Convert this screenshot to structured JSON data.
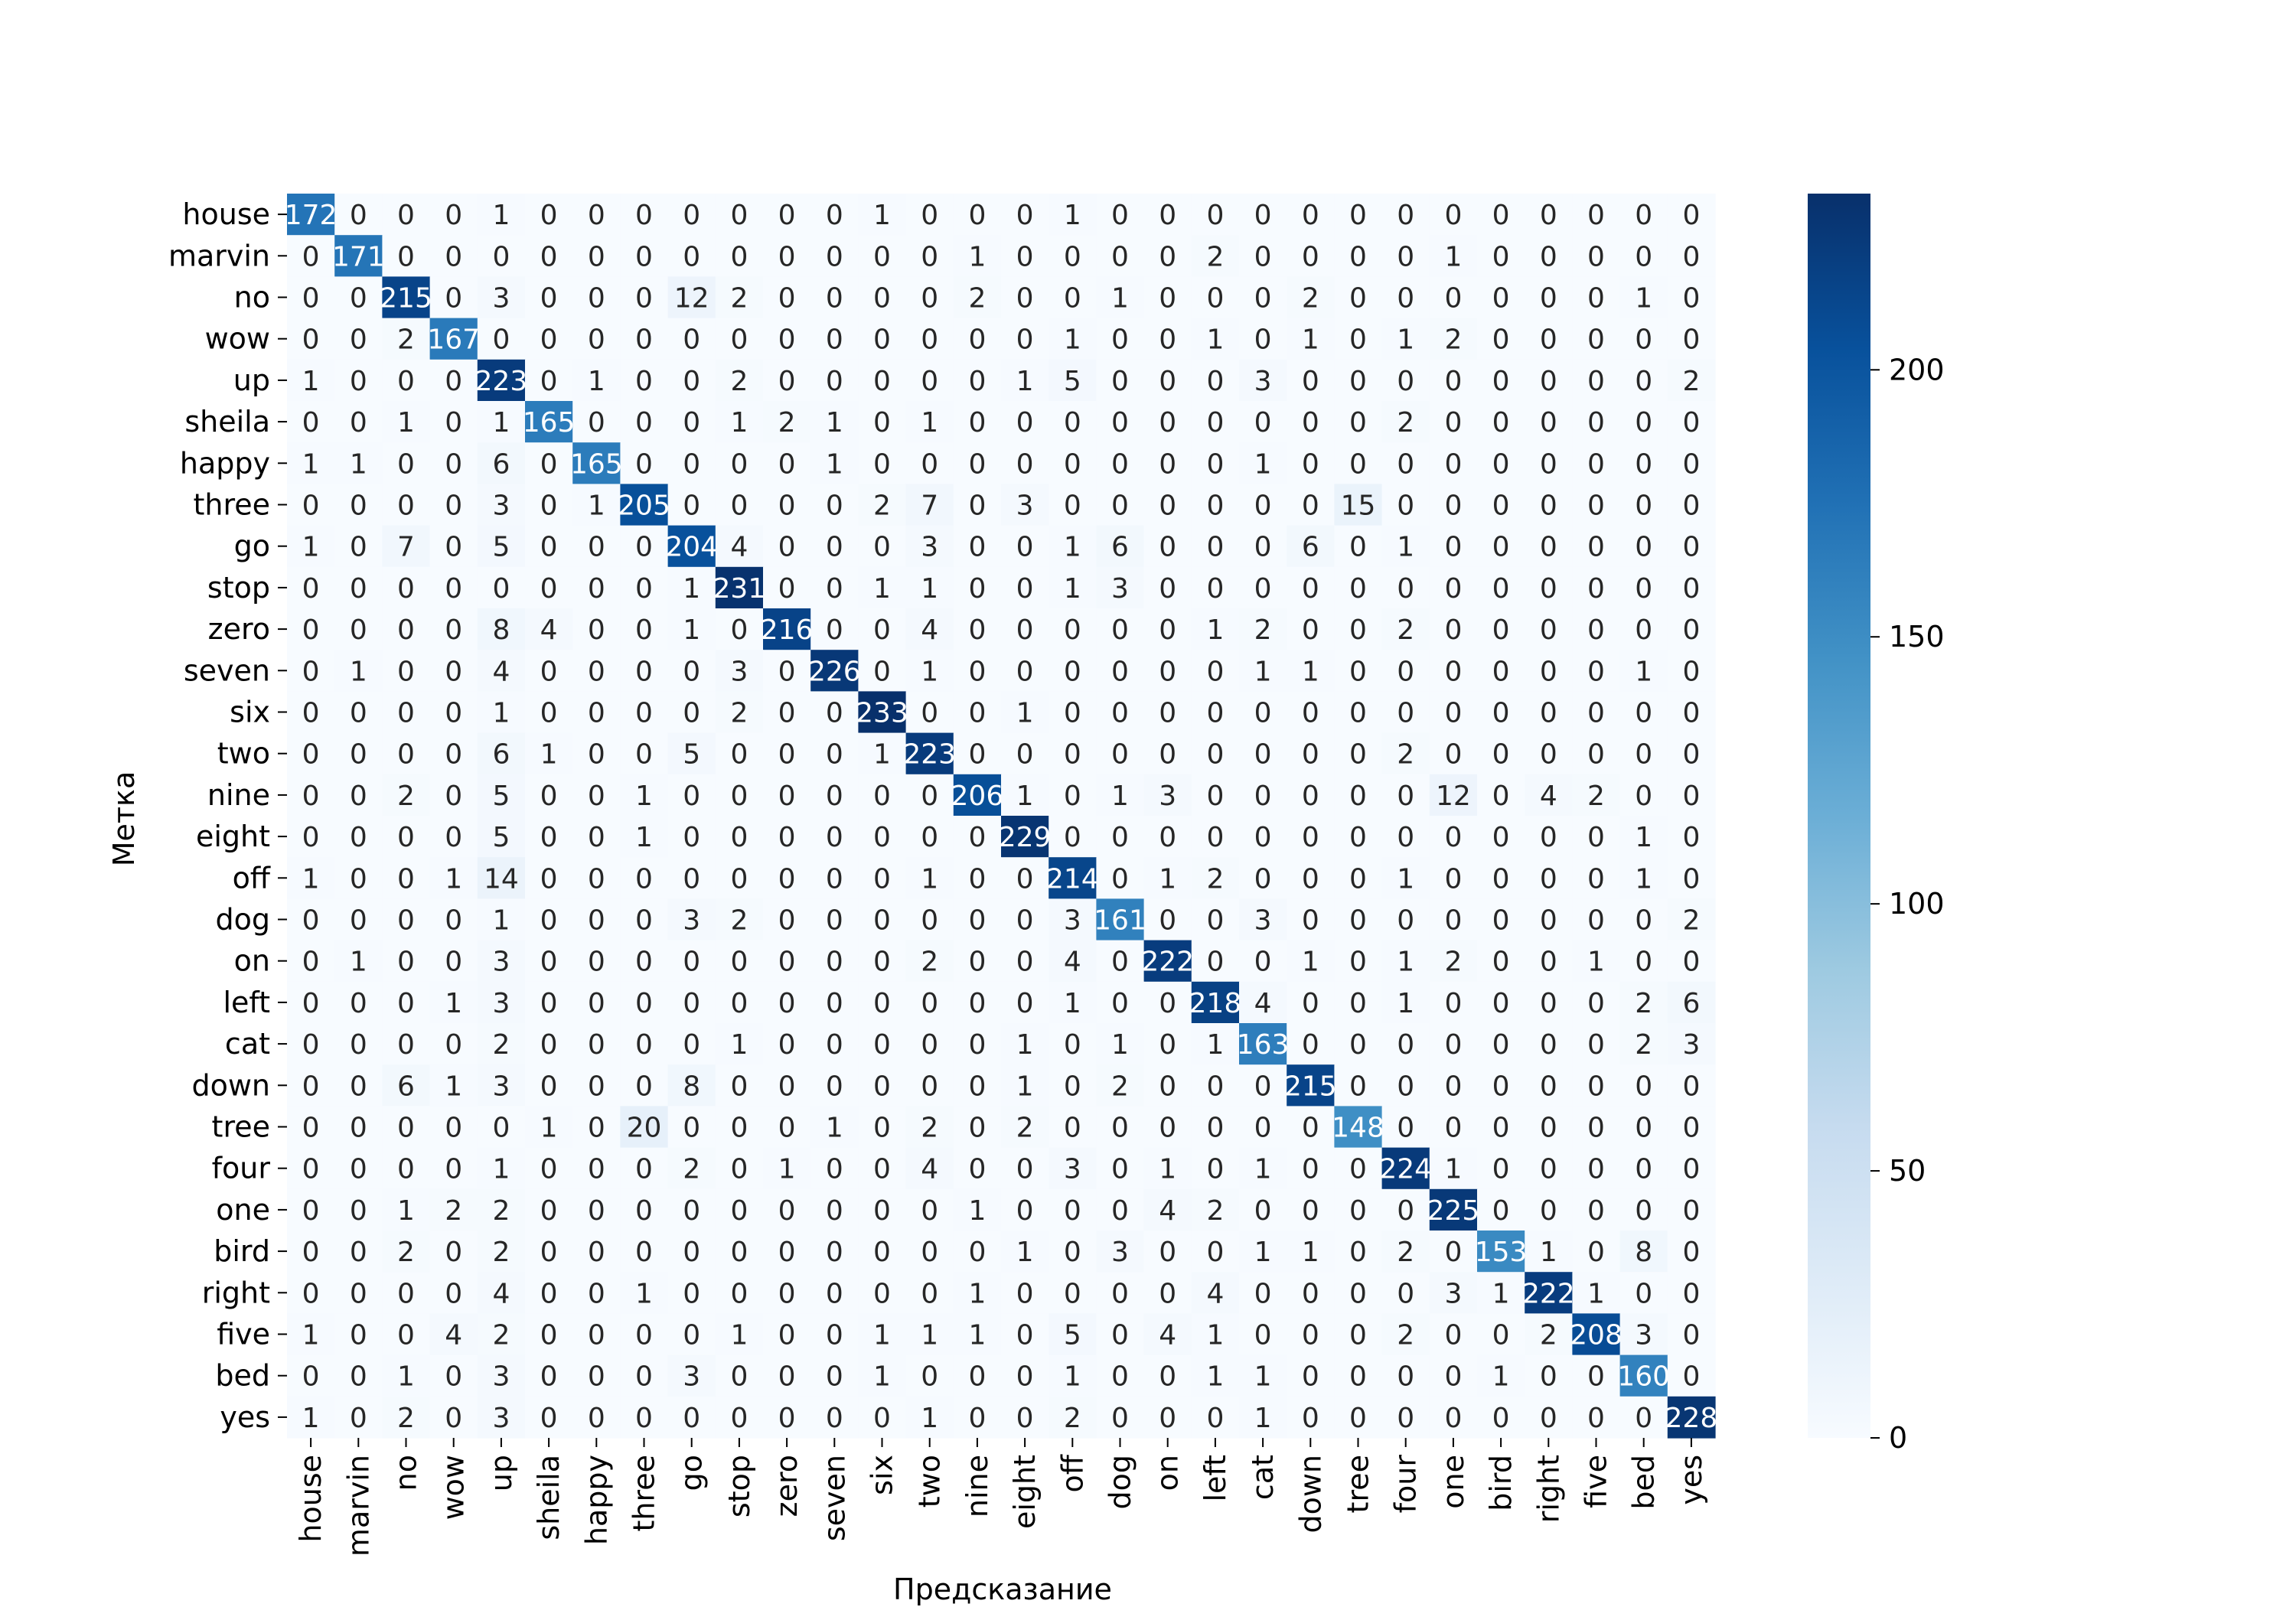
{
  "chart_data": {
    "type": "heatmap",
    "title": "",
    "xlabel": "Предсказание",
    "ylabel": "Метка",
    "row_labels": [
      "house",
      "marvin",
      "no",
      "wow",
      "up",
      "sheila",
      "happy",
      "three",
      "go",
      "stop",
      "zero",
      "seven",
      "six",
      "two",
      "nine",
      "eight",
      "off",
      "dog",
      "on",
      "left",
      "cat",
      "down",
      "tree",
      "four",
      "one",
      "bird",
      "right",
      "five",
      "bed",
      "yes"
    ],
    "col_labels": [
      "house",
      "marvin",
      "no",
      "wow",
      "up",
      "sheila",
      "happy",
      "three",
      "go",
      "stop",
      "zero",
      "seven",
      "six",
      "two",
      "nine",
      "eight",
      "off",
      "dog",
      "on",
      "left",
      "cat",
      "down",
      "tree",
      "four",
      "one",
      "bird",
      "right",
      "five",
      "bed",
      "yes"
    ],
    "values": [
      [
        172,
        0,
        0,
        0,
        1,
        0,
        0,
        0,
        0,
        0,
        0,
        0,
        1,
        0,
        0,
        0,
        1,
        0,
        0,
        0,
        0,
        0,
        0,
        0,
        0,
        0,
        0,
        0,
        0,
        0
      ],
      [
        0,
        171,
        0,
        0,
        0,
        0,
        0,
        0,
        0,
        0,
        0,
        0,
        0,
        0,
        1,
        0,
        0,
        0,
        0,
        2,
        0,
        0,
        0,
        0,
        1,
        0,
        0,
        0,
        0,
        0
      ],
      [
        0,
        0,
        215,
        0,
        3,
        0,
        0,
        0,
        12,
        2,
        0,
        0,
        0,
        0,
        2,
        0,
        0,
        1,
        0,
        0,
        0,
        2,
        0,
        0,
        0,
        0,
        0,
        0,
        1,
        0
      ],
      [
        0,
        0,
        2,
        167,
        0,
        0,
        0,
        0,
        0,
        0,
        0,
        0,
        0,
        0,
        0,
        0,
        1,
        0,
        0,
        1,
        0,
        1,
        0,
        1,
        2,
        0,
        0,
        0,
        0,
        0
      ],
      [
        1,
        0,
        0,
        0,
        223,
        0,
        1,
        0,
        0,
        2,
        0,
        0,
        0,
        0,
        0,
        1,
        5,
        0,
        0,
        0,
        3,
        0,
        0,
        0,
        0,
        0,
        0,
        0,
        0,
        2
      ],
      [
        0,
        0,
        1,
        0,
        1,
        165,
        0,
        0,
        0,
        1,
        2,
        1,
        0,
        1,
        0,
        0,
        0,
        0,
        0,
        0,
        0,
        0,
        0,
        2,
        0,
        0,
        0,
        0,
        0,
        0
      ],
      [
        1,
        1,
        0,
        0,
        6,
        0,
        165,
        0,
        0,
        0,
        0,
        1,
        0,
        0,
        0,
        0,
        0,
        0,
        0,
        0,
        1,
        0,
        0,
        0,
        0,
        0,
        0,
        0,
        0,
        0
      ],
      [
        0,
        0,
        0,
        0,
        3,
        0,
        1,
        205,
        0,
        0,
        0,
        0,
        2,
        7,
        0,
        3,
        0,
        0,
        0,
        0,
        0,
        0,
        15,
        0,
        0,
        0,
        0,
        0,
        0,
        0
      ],
      [
        1,
        0,
        7,
        0,
        5,
        0,
        0,
        0,
        204,
        4,
        0,
        0,
        0,
        3,
        0,
        0,
        1,
        6,
        0,
        0,
        0,
        6,
        0,
        1,
        0,
        0,
        0,
        0,
        0,
        0
      ],
      [
        0,
        0,
        0,
        0,
        0,
        0,
        0,
        0,
        1,
        231,
        0,
        0,
        1,
        1,
        0,
        0,
        1,
        3,
        0,
        0,
        0,
        0,
        0,
        0,
        0,
        0,
        0,
        0,
        0,
        0
      ],
      [
        0,
        0,
        0,
        0,
        8,
        4,
        0,
        0,
        1,
        0,
        216,
        0,
        0,
        4,
        0,
        0,
        0,
        0,
        0,
        1,
        2,
        0,
        0,
        2,
        0,
        0,
        0,
        0,
        0,
        0
      ],
      [
        0,
        1,
        0,
        0,
        4,
        0,
        0,
        0,
        0,
        3,
        0,
        226,
        0,
        1,
        0,
        0,
        0,
        0,
        0,
        0,
        1,
        1,
        0,
        0,
        0,
        0,
        0,
        0,
        1,
        0
      ],
      [
        0,
        0,
        0,
        0,
        1,
        0,
        0,
        0,
        0,
        2,
        0,
        0,
        233,
        0,
        0,
        1,
        0,
        0,
        0,
        0,
        0,
        0,
        0,
        0,
        0,
        0,
        0,
        0,
        0,
        0
      ],
      [
        0,
        0,
        0,
        0,
        6,
        1,
        0,
        0,
        5,
        0,
        0,
        0,
        1,
        223,
        0,
        0,
        0,
        0,
        0,
        0,
        0,
        0,
        0,
        2,
        0,
        0,
        0,
        0,
        0,
        0
      ],
      [
        0,
        0,
        2,
        0,
        5,
        0,
        0,
        1,
        0,
        0,
        0,
        0,
        0,
        0,
        206,
        1,
        0,
        1,
        3,
        0,
        0,
        0,
        0,
        0,
        12,
        0,
        4,
        2,
        0,
        0
      ],
      [
        0,
        0,
        0,
        0,
        5,
        0,
        0,
        1,
        0,
        0,
        0,
        0,
        0,
        0,
        0,
        229,
        0,
        0,
        0,
        0,
        0,
        0,
        0,
        0,
        0,
        0,
        0,
        0,
        1,
        0
      ],
      [
        1,
        0,
        0,
        1,
        14,
        0,
        0,
        0,
        0,
        0,
        0,
        0,
        0,
        1,
        0,
        0,
        214,
        0,
        1,
        2,
        0,
        0,
        0,
        1,
        0,
        0,
        0,
        0,
        1,
        0
      ],
      [
        0,
        0,
        0,
        0,
        1,
        0,
        0,
        0,
        3,
        2,
        0,
        0,
        0,
        0,
        0,
        0,
        3,
        161,
        0,
        0,
        3,
        0,
        0,
        0,
        0,
        0,
        0,
        0,
        0,
        2
      ],
      [
        0,
        1,
        0,
        0,
        3,
        0,
        0,
        0,
        0,
        0,
        0,
        0,
        0,
        2,
        0,
        0,
        4,
        0,
        222,
        0,
        0,
        1,
        0,
        1,
        2,
        0,
        0,
        1,
        0,
        0
      ],
      [
        0,
        0,
        0,
        1,
        3,
        0,
        0,
        0,
        0,
        0,
        0,
        0,
        0,
        0,
        0,
        0,
        1,
        0,
        0,
        218,
        4,
        0,
        0,
        1,
        0,
        0,
        0,
        0,
        2,
        6
      ],
      [
        0,
        0,
        0,
        0,
        2,
        0,
        0,
        0,
        0,
        1,
        0,
        0,
        0,
        0,
        0,
        1,
        0,
        1,
        0,
        1,
        163,
        0,
        0,
        0,
        0,
        0,
        0,
        0,
        2,
        3
      ],
      [
        0,
        0,
        6,
        1,
        3,
        0,
        0,
        0,
        8,
        0,
        0,
        0,
        0,
        0,
        0,
        1,
        0,
        2,
        0,
        0,
        0,
        215,
        0,
        0,
        0,
        0,
        0,
        0,
        0,
        0
      ],
      [
        0,
        0,
        0,
        0,
        0,
        1,
        0,
        20,
        0,
        0,
        0,
        1,
        0,
        2,
        0,
        2,
        0,
        0,
        0,
        0,
        0,
        0,
        148,
        0,
        0,
        0,
        0,
        0,
        0,
        0
      ],
      [
        0,
        0,
        0,
        0,
        1,
        0,
        0,
        0,
        2,
        0,
        1,
        0,
        0,
        4,
        0,
        0,
        3,
        0,
        1,
        0,
        1,
        0,
        0,
        224,
        1,
        0,
        0,
        0,
        0,
        0
      ],
      [
        0,
        0,
        1,
        2,
        2,
        0,
        0,
        0,
        0,
        0,
        0,
        0,
        0,
        0,
        1,
        0,
        0,
        0,
        4,
        2,
        0,
        0,
        0,
        0,
        225,
        0,
        0,
        0,
        0,
        0
      ],
      [
        0,
        0,
        2,
        0,
        2,
        0,
        0,
        0,
        0,
        0,
        0,
        0,
        0,
        0,
        0,
        1,
        0,
        3,
        0,
        0,
        1,
        1,
        0,
        2,
        0,
        153,
        1,
        0,
        8,
        0
      ],
      [
        0,
        0,
        0,
        0,
        4,
        0,
        0,
        1,
        0,
        0,
        0,
        0,
        0,
        0,
        1,
        0,
        0,
        0,
        0,
        4,
        0,
        0,
        0,
        0,
        3,
        1,
        222,
        1,
        0,
        0
      ],
      [
        1,
        0,
        0,
        4,
        2,
        0,
        0,
        0,
        0,
        1,
        0,
        0,
        1,
        1,
        1,
        0,
        5,
        0,
        4,
        1,
        0,
        0,
        0,
        2,
        0,
        0,
        2,
        208,
        3,
        0
      ],
      [
        0,
        0,
        1,
        0,
        3,
        0,
        0,
        0,
        3,
        0,
        0,
        0,
        1,
        0,
        0,
        0,
        1,
        0,
        0,
        1,
        1,
        0,
        0,
        0,
        0,
        1,
        0,
        0,
        160,
        0
      ],
      [
        1,
        0,
        2,
        0,
        3,
        0,
        0,
        0,
        0,
        0,
        0,
        0,
        0,
        1,
        0,
        0,
        2,
        0,
        0,
        0,
        1,
        0,
        0,
        0,
        0,
        0,
        0,
        0,
        0,
        228
      ]
    ],
    "vmin": 0,
    "vmax": 233,
    "colormap": "Blues",
    "colorbar_ticks": [
      0,
      50,
      100,
      150,
      200
    ],
    "colorbar_tick_labels": [
      "0",
      "50",
      "100",
      "150",
      "200"
    ]
  }
}
